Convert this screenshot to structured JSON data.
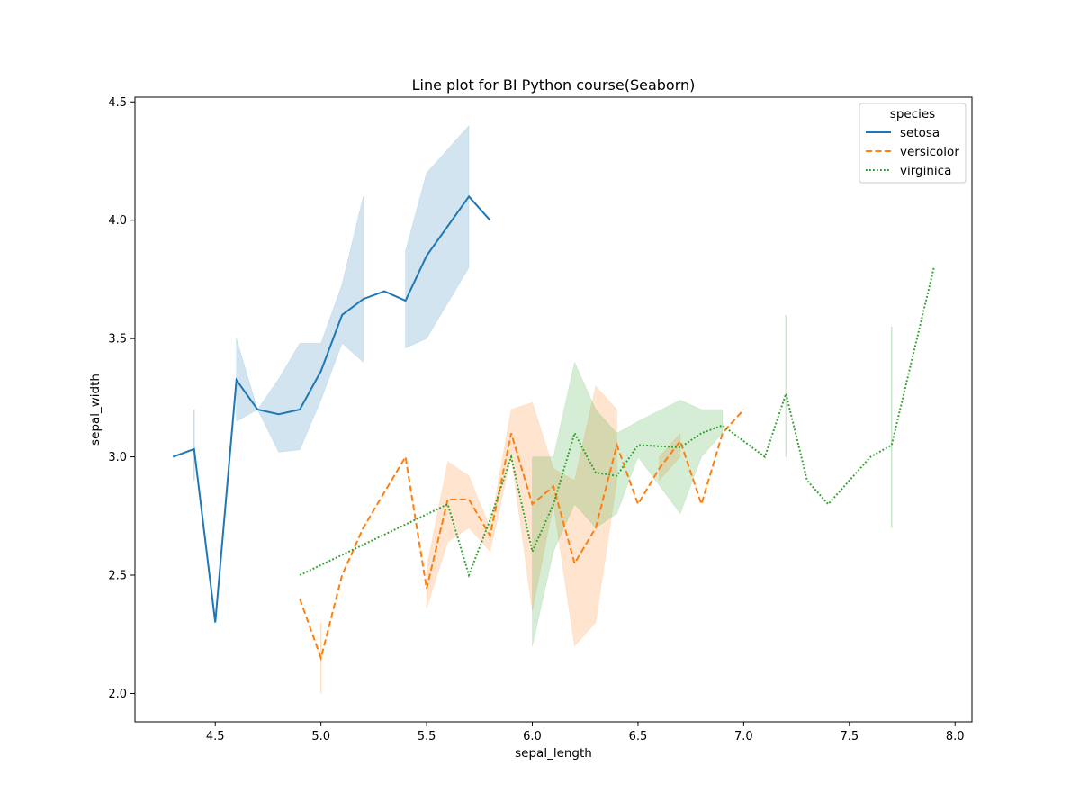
{
  "chart_data": {
    "type": "line",
    "title": "Line plot for BI Python course(Seaborn)",
    "xlabel": "sepal_length",
    "ylabel": "sepal_width",
    "xlim": [
      4.12,
      8.08
    ],
    "ylim": [
      1.88,
      4.52
    ],
    "xticks": [
      "4.5",
      "5.0",
      "5.5",
      "6.0",
      "6.5",
      "7.0",
      "7.5",
      "8.0"
    ],
    "yticks": [
      "2.0",
      "2.5",
      "3.0",
      "3.5",
      "4.0",
      "4.5"
    ],
    "grid": false,
    "legend": {
      "title": "species",
      "placement": "top-right"
    },
    "series": [
      {
        "name": "setosa",
        "color": "#1f77b4",
        "dash": "solid",
        "points": [
          {
            "x": 4.3,
            "y": 3.0
          },
          {
            "x": 4.4,
            "y": 3.033,
            "lo": 2.9,
            "hi": 3.2
          },
          {
            "x": 4.5,
            "y": 2.3
          },
          {
            "x": 4.6,
            "y": 3.325,
            "lo": 3.15,
            "hi": 3.5
          },
          {
            "x": 4.7,
            "y": 3.2,
            "lo": 3.2,
            "hi": 3.2
          },
          {
            "x": 4.8,
            "y": 3.18,
            "lo": 3.02,
            "hi": 3.33
          },
          {
            "x": 4.9,
            "y": 3.2,
            "lo": 3.03,
            "hi": 3.48
          },
          {
            "x": 5.0,
            "y": 3.3625,
            "lo": 3.24,
            "hi": 3.48
          },
          {
            "x": 5.1,
            "y": 3.6,
            "lo": 3.48,
            "hi": 3.73
          },
          {
            "x": 5.2,
            "y": 3.667,
            "lo": 3.4,
            "hi": 4.1
          },
          {
            "x": 5.3,
            "y": 3.7
          },
          {
            "x": 5.4,
            "y": 3.66,
            "lo": 3.46,
            "hi": 3.87
          },
          {
            "x": 5.5,
            "y": 3.85,
            "lo": 3.5,
            "hi": 4.2
          },
          {
            "x": 5.7,
            "y": 4.1,
            "lo": 3.8,
            "hi": 4.4
          },
          {
            "x": 5.8,
            "y": 4.0
          }
        ]
      },
      {
        "name": "versicolor",
        "color": "#ff7f0e",
        "dash": "dashed",
        "points": [
          {
            "x": 4.9,
            "y": 2.4
          },
          {
            "x": 5.0,
            "y": 2.15,
            "lo": 2.0,
            "hi": 2.3
          },
          {
            "x": 5.1,
            "y": 2.5
          },
          {
            "x": 5.2,
            "y": 2.7
          },
          {
            "x": 5.4,
            "y": 3.0
          },
          {
            "x": 5.5,
            "y": 2.443,
            "lo": 2.36,
            "hi": 2.53
          },
          {
            "x": 5.6,
            "y": 2.82,
            "lo": 2.64,
            "hi": 2.98
          },
          {
            "x": 5.7,
            "y": 2.82,
            "lo": 2.7,
            "hi": 2.92
          },
          {
            "x": 5.8,
            "y": 2.667,
            "lo": 2.6,
            "hi": 2.7
          },
          {
            "x": 5.9,
            "y": 3.1,
            "lo": 3.0,
            "hi": 3.2
          },
          {
            "x": 6.0,
            "y": 2.8,
            "lo": 2.35,
            "hi": 3.23
          },
          {
            "x": 6.1,
            "y": 2.875,
            "lo": 2.8,
            "hi": 2.95
          },
          {
            "x": 6.2,
            "y": 2.55,
            "lo": 2.2,
            "hi": 2.9
          },
          {
            "x": 6.3,
            "y": 2.7,
            "lo": 2.3,
            "hi": 3.3
          },
          {
            "x": 6.4,
            "y": 3.05,
            "lo": 2.9,
            "hi": 3.2
          },
          {
            "x": 6.5,
            "y": 2.8
          },
          {
            "x": 6.6,
            "y": 2.95,
            "lo": 2.9,
            "hi": 3.0
          },
          {
            "x": 6.7,
            "y": 3.067,
            "lo": 3.0,
            "hi": 3.1
          },
          {
            "x": 6.8,
            "y": 2.8
          },
          {
            "x": 6.9,
            "y": 3.1
          },
          {
            "x": 7.0,
            "y": 3.2
          }
        ]
      },
      {
        "name": "virginica",
        "color": "#2ca02c",
        "dash": "dotted",
        "points": [
          {
            "x": 4.9,
            "y": 2.5
          },
          {
            "x": 5.6,
            "y": 2.8
          },
          {
            "x": 5.7,
            "y": 2.5
          },
          {
            "x": 5.8,
            "y": 2.733,
            "lo": 2.7,
            "hi": 2.8
          },
          {
            "x": 5.9,
            "y": 3.0
          },
          {
            "x": 6.0,
            "y": 2.6,
            "lo": 2.2,
            "hi": 3.0
          },
          {
            "x": 6.1,
            "y": 2.8,
            "lo": 2.6,
            "hi": 3.0
          },
          {
            "x": 6.2,
            "y": 3.1,
            "lo": 2.8,
            "hi": 3.4
          },
          {
            "x": 6.3,
            "y": 2.933,
            "lo": 2.7,
            "hi": 3.2
          },
          {
            "x": 6.4,
            "y": 2.92,
            "lo": 2.76,
            "hi": 3.1
          },
          {
            "x": 6.5,
            "y": 3.05,
            "lo": 3.0,
            "hi": 3.15
          },
          {
            "x": 6.7,
            "y": 3.04,
            "lo": 2.76,
            "hi": 3.24
          },
          {
            "x": 6.8,
            "y": 3.1,
            "lo": 3.0,
            "hi": 3.2
          },
          {
            "x": 6.9,
            "y": 3.133,
            "lo": 3.1,
            "hi": 3.2
          },
          {
            "x": 7.1,
            "y": 3.0
          },
          {
            "x": 7.2,
            "y": 3.267,
            "lo": 3.0,
            "hi": 3.6
          },
          {
            "x": 7.3,
            "y": 2.9
          },
          {
            "x": 7.4,
            "y": 2.8
          },
          {
            "x": 7.6,
            "y": 3.0
          },
          {
            "x": 7.7,
            "y": 3.05,
            "lo": 2.7,
            "hi": 3.55
          },
          {
            "x": 7.9,
            "y": 3.8
          }
        ]
      }
    ]
  }
}
